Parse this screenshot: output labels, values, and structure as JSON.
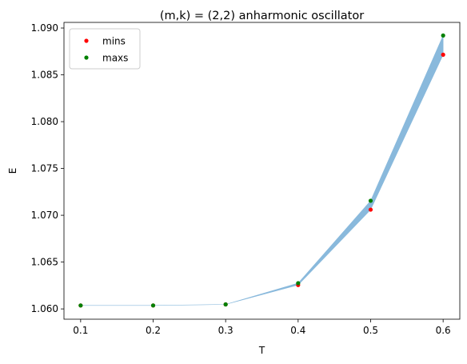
{
  "chart_data": {
    "type": "scatter",
    "title": "(m,k) = (2,2) anharmonic oscillator",
    "xlabel": "T",
    "ylabel": "E",
    "xlim": [
      0.077,
      0.623
    ],
    "ylim": [
      1.0589,
      1.0906
    ],
    "xticks": [
      0.1,
      0.2,
      0.3,
      0.4,
      0.5,
      0.6
    ],
    "xtick_labels": [
      "0.1",
      "0.2",
      "0.3",
      "0.4",
      "0.5",
      "0.6"
    ],
    "yticks": [
      1.06,
      1.065,
      1.07,
      1.075,
      1.08,
      1.085,
      1.09
    ],
    "ytick_labels": [
      "1.060",
      "1.065",
      "1.070",
      "1.075",
      "1.080",
      "1.085",
      "1.090"
    ],
    "grid": false,
    "legend_position": "top-left",
    "band": {
      "color": "#89b9dc",
      "x": [
        0.1,
        0.2,
        0.3,
        0.4,
        0.5,
        0.6
      ],
      "lower": [
        1.06037,
        1.06037,
        1.06048,
        1.06255,
        1.0706,
        1.08715
      ],
      "upper": [
        1.06037,
        1.06037,
        1.06048,
        1.06275,
        1.07155,
        1.0892
      ]
    },
    "series": [
      {
        "name": "mins",
        "color": "#ff0000",
        "x": [
          0.1,
          0.2,
          0.3,
          0.4,
          0.5,
          0.6
        ],
        "y": [
          1.06037,
          1.06037,
          1.06048,
          1.06255,
          1.0706,
          1.08715
        ]
      },
      {
        "name": "maxs",
        "color": "#008000",
        "x": [
          0.1,
          0.2,
          0.3,
          0.4,
          0.5,
          0.6
        ],
        "y": [
          1.06037,
          1.06037,
          1.06048,
          1.06275,
          1.07155,
          1.0892
        ]
      }
    ]
  }
}
